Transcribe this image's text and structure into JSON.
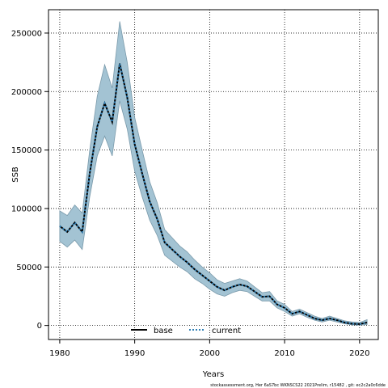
{
  "chart_data": {
    "type": "line",
    "xlabel": "Years",
    "ylabel": "SSB",
    "xlim": [
      1978.5,
      2022.5
    ],
    "ylim": [
      -12000,
      270000
    ],
    "xticks": [
      1980,
      1990,
      2000,
      2010,
      2020
    ],
    "yticks": [
      0,
      50000,
      100000,
      150000,
      200000,
      250000
    ],
    "grid": true,
    "legend_position": "bottom-center",
    "band_color": "#a3c3d3",
    "band_edge_color": "#7a9aab",
    "x": [
      1980,
      1981,
      1982,
      1983,
      1984,
      1985,
      1986,
      1987,
      1988,
      1989,
      1990,
      1991,
      1992,
      1993,
      1994,
      1995,
      1996,
      1997,
      1998,
      1999,
      2000,
      2001,
      2002,
      2003,
      2004,
      2005,
      2006,
      2007,
      2008,
      2009,
      2010,
      2011,
      2012,
      2013,
      2014,
      2015,
      2016,
      2017,
      2018,
      2019,
      2020,
      2021
    ],
    "band_upper": [
      98000,
      94000,
      103000,
      96000,
      150000,
      196000,
      223000,
      203000,
      260000,
      225000,
      178000,
      150000,
      123000,
      105000,
      82000,
      75000,
      68000,
      63000,
      56000,
      50000,
      45000,
      39000,
      36000,
      38000,
      40000,
      38000,
      33000,
      28000,
      29000,
      21000,
      18000,
      12000,
      14000,
      11000,
      8000,
      6000,
      8000,
      6000,
      4000,
      3000,
      2500,
      5000
    ],
    "band_lower": [
      72000,
      67000,
      73000,
      65000,
      110000,
      145000,
      162000,
      145000,
      192000,
      168000,
      132000,
      110000,
      90000,
      77000,
      60000,
      55000,
      50000,
      46000,
      40000,
      36000,
      31000,
      27000,
      25000,
      28000,
      30000,
      29000,
      25000,
      21000,
      21000,
      15000,
      12000,
      8000,
      10000,
      7000,
      4500,
      3000,
      4500,
      3000,
      1500,
      500,
      300,
      800
    ],
    "series": [
      {
        "name": "base",
        "style": "solid",
        "color": "#000000",
        "values": [
          85000,
          80000,
          88000,
          80000,
          130000,
          170000,
          190000,
          174000,
          224000,
          195000,
          155000,
          130000,
          106000,
          91000,
          71000,
          65000,
          59000,
          54000,
          48000,
          43000,
          38000,
          33000,
          30000,
          33000,
          35000,
          33500,
          29000,
          24500,
          25000,
          18000,
          15000,
          10000,
          12000,
          9000,
          6000,
          4500,
          6000,
          4500,
          2500,
          1500,
          1200,
          2500
        ]
      },
      {
        "name": "current",
        "style": "dashed",
        "color": "#2f7fb5",
        "values": [
          85000,
          80000,
          88000,
          80000,
          130000,
          170000,
          190000,
          174000,
          224000,
          195000,
          155000,
          130000,
          106000,
          91000,
          71000,
          65000,
          59000,
          54000,
          48000,
          43000,
          38000,
          33000,
          30000,
          33000,
          35000,
          33500,
          29000,
          24500,
          25000,
          18000,
          15000,
          10000,
          12000,
          9000,
          6000,
          4500,
          6000,
          4500,
          2500,
          1500,
          1200,
          2500
        ]
      }
    ],
    "annotation": "stockassessment.org, Her 6aS7bc WKNSCS22 2021Prelim, r15482 , git: ec2c2a0c6dde"
  }
}
